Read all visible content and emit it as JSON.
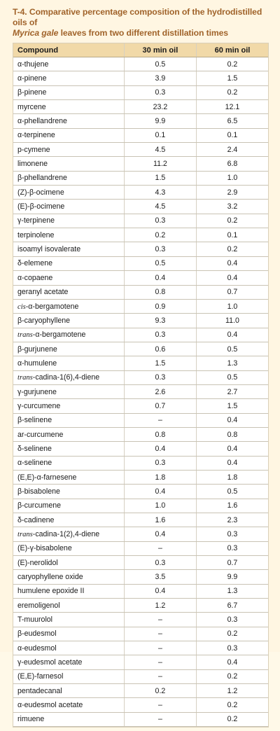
{
  "caption": {
    "line1": "T-4. Comparative percentage composition of the hydrodistilled oils of",
    "species": "Myrica gale",
    "line2_rest": " leaves from two different distillation times"
  },
  "table": {
    "headers": [
      "Compound",
      "30 min oil",
      "60 min oil"
    ],
    "rows": [
      [
        "α-thujene",
        "0.5",
        "0.2"
      ],
      [
        "α-pinene",
        "3.9",
        "1.5"
      ],
      [
        "β-pinene",
        "0.3",
        "0.2"
      ],
      [
        "myrcene",
        "23.2",
        "12.1"
      ],
      [
        "α-phellandrene",
        "9.9",
        "6.5"
      ],
      [
        "α-terpinene",
        "0.1",
        "0.1"
      ],
      [
        "p-cymene",
        "4.5",
        "2.4"
      ],
      [
        "limonene",
        "11.2",
        "6.8"
      ],
      [
        "β-phellandrene",
        "1.5",
        "1.0"
      ],
      [
        "(Z)-β-ocimene",
        "4.3",
        "2.9"
      ],
      [
        "(E)-β-ocimene",
        "4.5",
        "3.2"
      ],
      [
        "γ-terpinene",
        "0.3",
        "0.2"
      ],
      [
        "terpinolene",
        "0.2",
        "0.1"
      ],
      [
        "isoamyl isovalerate",
        "0.3",
        "0.2"
      ],
      [
        "δ-elemene",
        "0.5",
        "0.4"
      ],
      [
        "α-copaene",
        "0.4",
        "0.4"
      ],
      [
        "geranyl acetate",
        "0.8",
        "0.7"
      ],
      [
        "cis-α-bergamotene",
        "0.9",
        "1.0"
      ],
      [
        "β-caryophyllene",
        "9.3",
        "11.0"
      ],
      [
        "trans-α-bergamotene",
        "0.3",
        "0.4"
      ],
      [
        "β-gurjunene",
        "0.6",
        "0.5"
      ],
      [
        "α-humulene",
        "1.5",
        "1.3"
      ],
      [
        "trans-cadina-1(6),4-diene",
        "0.3",
        "0.5"
      ],
      [
        "γ-gurjunene",
        "2.6",
        "2.7"
      ],
      [
        "γ-curcumene",
        "0.7",
        "1.5"
      ],
      [
        "β-selinene",
        "–",
        "0.4"
      ],
      [
        "ar-curcumene",
        "0.8",
        "0.8"
      ],
      [
        "δ-selinene",
        "0.4",
        "0.4"
      ],
      [
        "α-selinene",
        "0.3",
        "0.4"
      ],
      [
        "(E,E)-α-farnesene",
        "1.8",
        "1.8"
      ],
      [
        "β-bisabolene",
        "0.4",
        "0.5"
      ],
      [
        "β-curcumene",
        "1.0",
        "1.6"
      ],
      [
        "δ-cadinene",
        "1.6",
        "2.3"
      ],
      [
        "trans-cadina-1(2),4-diene",
        "0.4",
        "0.3"
      ],
      [
        "(E)-γ-bisabolene",
        "–",
        "0.3"
      ],
      [
        "(E)-nerolidol",
        "0.3",
        "0.7"
      ],
      [
        "caryophyllene oxide",
        "3.5",
        "9.9"
      ],
      [
        "humulene epoxide II",
        "0.4",
        "1.3"
      ],
      [
        "eremoligenol",
        "1.2",
        "6.7"
      ],
      [
        "T-muurolol",
        "–",
        "0.3"
      ],
      [
        "β-eudesmol",
        "–",
        "0.2"
      ],
      [
        "α-eudesmol",
        "–",
        "0.3"
      ],
      [
        "γ-eudesmol acetate",
        "–",
        "0.4"
      ],
      [
        "(E,E)-farnesol",
        "–",
        "0.2"
      ],
      [
        "pentadecanal",
        "0.2",
        "1.2"
      ],
      [
        "α-eudesmol acetate",
        "–",
        "0.2"
      ],
      [
        "rimuene",
        "–",
        "0.2"
      ]
    ]
  }
}
